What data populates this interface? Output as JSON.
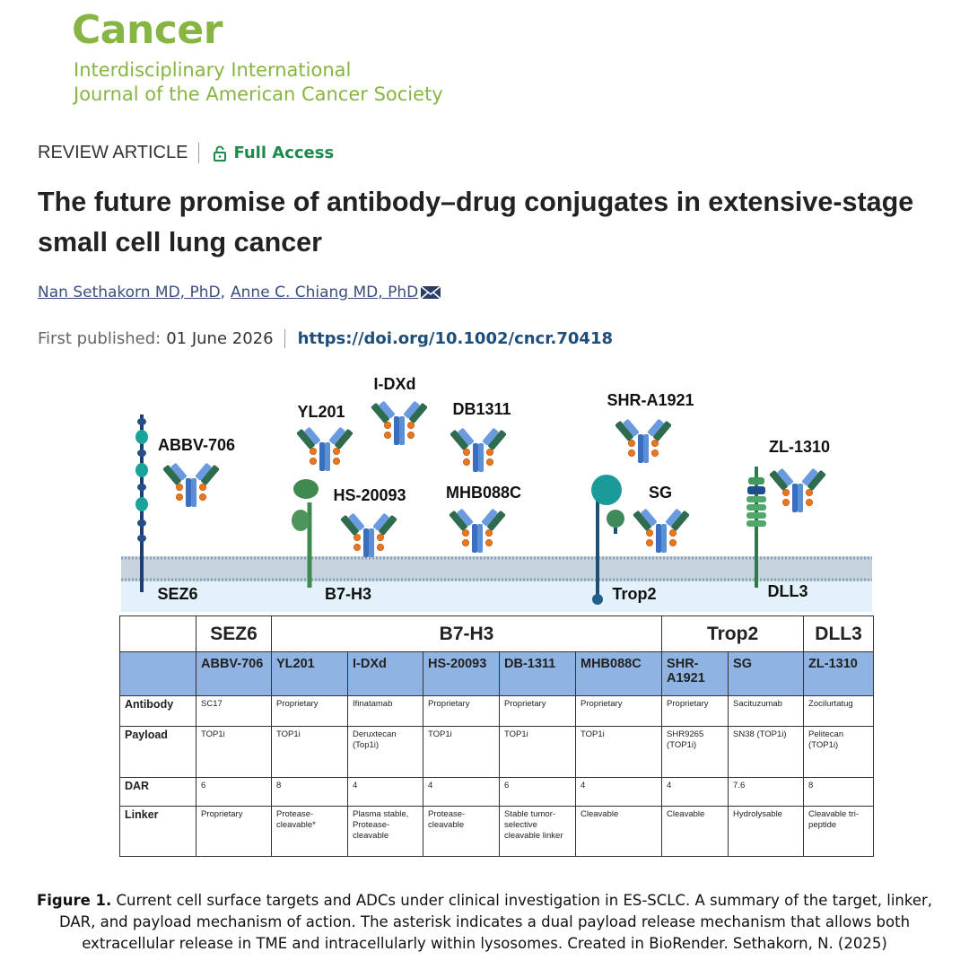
{
  "journal": {
    "name": "Cancer",
    "subtitle_1": "Interdisciplinary International",
    "subtitle_2": "Journal of the American Cancer Society"
  },
  "article": {
    "type": "REVIEW ARTICLE",
    "access": "Full Access",
    "title": "The future promise of antibody–drug conjugates in extensive-stage small cell lung cancer",
    "authors": [
      "Nan Sethakorn MD, PhD",
      "Anne C. Chiang MD, PhD"
    ],
    "author_separator": ",",
    "published_label": "First published:",
    "published_date": "01 June 2026",
    "doi": "https://doi.org/10.1002/cncr.70418"
  },
  "figure": {
    "diagram": {
      "adc_labels": [
        "ABBV-706",
        "YL201",
        "I-DXd",
        "DB1311",
        "HS-20093",
        "MHB088C",
        "SHR-A1921",
        "SG",
        "ZL-1310"
      ],
      "target_labels": [
        "SEZ6",
        "B7-H3",
        "Trop2",
        "DLL3"
      ]
    },
    "table": {
      "groups": [
        {
          "target": "SEZ6",
          "adcs": [
            "ABBV-706"
          ]
        },
        {
          "target": "B7-H3",
          "adcs": [
            "YL201",
            "I-DXd",
            "HS-20093",
            "DB-1311",
            "MHB088C"
          ]
        },
        {
          "target": "Trop2",
          "adcs": [
            "SHR-A1921",
            "SG"
          ]
        },
        {
          "target": "DLL3",
          "adcs": [
            "ZL-1310"
          ]
        }
      ],
      "rows": [
        {
          "label": "Antibody",
          "cells": [
            "SC17",
            "Proprietary",
            "Ifinatamab",
            "Proprietary",
            "Proprietary",
            "Proprietary",
            "Proprietary",
            "Sacituzumab",
            "Zocilurtatug"
          ]
        },
        {
          "label": "Payload",
          "cells": [
            "TOP1i",
            "TOP1i",
            "Deruxtecan (Top1i)",
            "TOP1i",
            "TOP1i",
            "TOP1i",
            "SHR9265 (TOP1i)",
            "SN38 (TOP1i)",
            "Pelitecan (TOP1i)"
          ]
        },
        {
          "label": "DAR",
          "cells": [
            6,
            8,
            4,
            4,
            6,
            4,
            4,
            7.6,
            8
          ]
        },
        {
          "label": "Linker",
          "cells": [
            "Proprietary",
            "Protease-cleavable*",
            "Plasma stable, Protease-cleavable",
            "Protease-cleavable",
            "Stable tumor-selective cleavable linker",
            "Cleavable",
            "Cleavable",
            "Hydrolysable",
            "Cleavable tri-peptide"
          ]
        }
      ]
    },
    "caption": {
      "label": "Figure 1.",
      "text": "Current cell surface targets and ADCs under clinical investigation in ES-SCLC. A summary of the target, linker, DAR, and payload mechanism of action. The asterisk indicates a dual payload release mechanism that allows both extracellular release in TME and intracellularly within lysosomes. Created in BioRender. Sethakorn, N. (2025)"
    }
  }
}
